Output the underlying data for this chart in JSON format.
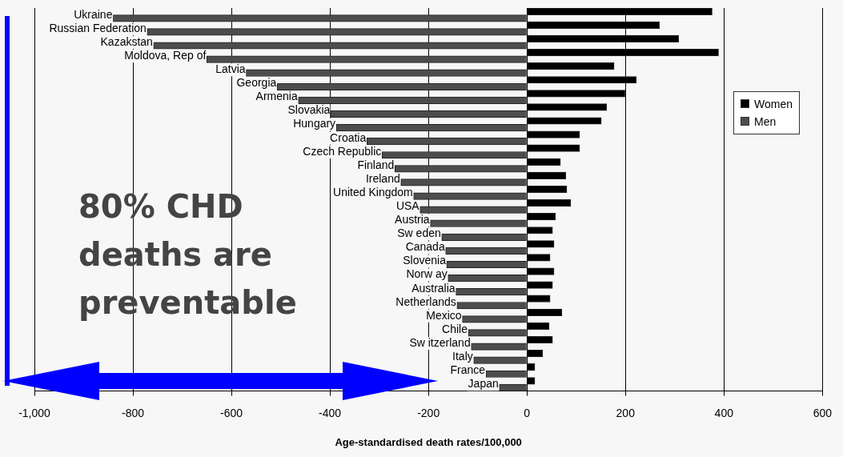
{
  "chart_data": {
    "type": "bar",
    "orientation": "horizontal",
    "xlabel": "Age-standardised death rates/100,000",
    "categories": [
      "Ukraine",
      "Russian Federation",
      "Kazakstan",
      "Moldova, Rep of",
      "Latvia",
      "Georgia",
      "Armenia",
      "Slovakia",
      "Hungary",
      "Croatia",
      "Czech Republic",
      "Finland",
      "Ireland",
      "United Kingdom",
      "USA",
      "Austria",
      "Sw eden",
      "Canada",
      "Slovenia",
      "Norw ay",
      "Australia",
      "Netherlands",
      "Mexico",
      "Chile",
      "Sw itzerland",
      "Italy",
      "France",
      "Japan"
    ],
    "series": [
      {
        "name": "Women",
        "color": "#000000",
        "values": [
          376,
          269,
          308,
          389,
          177,
          222,
          199,
          162,
          151,
          107,
          107,
          68,
          79,
          81,
          89,
          58,
          52,
          55,
          47,
          55,
          52,
          47,
          71,
          45,
          52,
          32,
          16,
          16
        ]
      },
      {
        "name": "Men",
        "color": "#4d4d4d",
        "values": [
          -840,
          -771,
          -758,
          -650,
          -570,
          -507,
          -464,
          -398,
          -387,
          -325,
          -294,
          -268,
          -256,
          -230,
          -217,
          -196,
          -173,
          -165,
          -163,
          -160,
          -144,
          -142,
          -131,
          -119,
          -113,
          -108,
          -83,
          -56
        ]
      }
    ],
    "xlim": [
      -1000,
      600
    ],
    "xticks": [
      {
        "value": -1000,
        "label": "-1,000"
      },
      -800,
      -600,
      -400,
      -200,
      0,
      200,
      400,
      600
    ],
    "grid": "x",
    "legend": "right",
    "annotations": [
      "80% CHD deaths are preventable"
    ]
  }
}
